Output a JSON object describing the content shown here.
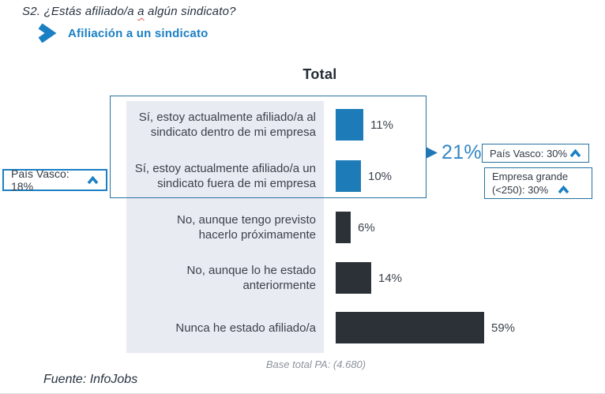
{
  "header": {
    "question_prefix": "S2. ¿Estás afiliado/a ",
    "question_word_marked": "a",
    "question_suffix": " algún sindicato?",
    "section_title": "Afiliación a un sindicato"
  },
  "chart_data": {
    "type": "bar",
    "orientation": "horizontal",
    "title": "Total",
    "xlabel": "",
    "ylabel": "",
    "axis": "none",
    "grid": false,
    "legend": false,
    "unit": "%",
    "xlim": [
      0,
      62
    ],
    "categories": [
      "Sí, estoy actualmente afiliado/a al\nsindicato dentro de mi empresa",
      "Sí, estoy actualmente afiliado/a un\nsindicato fuera de mi empresa",
      "No, aunque tengo previsto\nhacerlo próximamente",
      "No, aunque lo he estado\nanteriormente",
      "Nunca he estado afiliado/a"
    ],
    "values": [
      11,
      10,
      6,
      14,
      59
    ],
    "value_labels": [
      "11%",
      "10%",
      "6%",
      "14%",
      "59%"
    ],
    "series_colors": [
      "#1d7cb8",
      "#1d7cb8",
      "#2c3138",
      "#2c3138",
      "#2c3138"
    ]
  },
  "annotations": {
    "group_total": {
      "value": "21%",
      "note": "sum of first two bars"
    },
    "callout_left": {
      "text": "País Vasco: 18%"
    },
    "callout_right_1": {
      "text": "País Vasco: 30%"
    },
    "callout_right_2": {
      "line1": "Empresa grande",
      "line2": "(<250): 30%"
    }
  },
  "footer": {
    "base_note": "Base total PA: (4.680)",
    "source": "Fuente: InfoJobs"
  },
  "colors": {
    "accent_blue": "#1b7fc4",
    "bar_blue": "#1d7cb8",
    "bar_dark": "#2c3138",
    "box_border": "#26719f",
    "label_bg": "#e9ebf2",
    "pointer_blue": "#2176b4",
    "pct_blue": "#3287c5",
    "red_squiggle": "#e4574f"
  }
}
